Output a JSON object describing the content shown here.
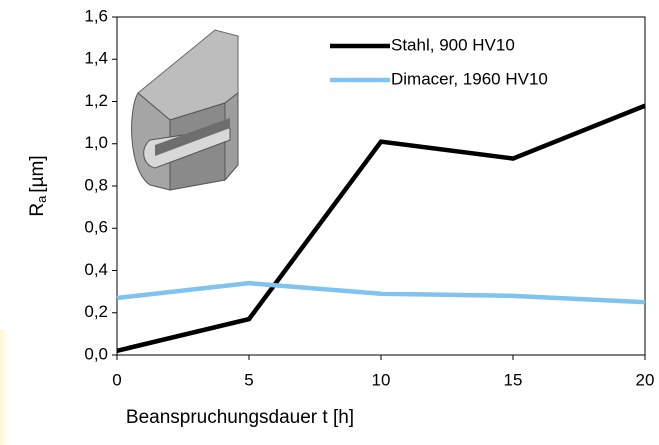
{
  "chart_data": {
    "type": "line",
    "x_label": "Beanspruchungsdauer t [h]",
    "y_label": {
      "symbol": "R",
      "subscript": "a",
      "unit": "[µm]"
    },
    "x": [
      0,
      5,
      10,
      15,
      20
    ],
    "series": [
      {
        "name": "Stahl, 900 HV10",
        "color": "#000000",
        "values": [
          0.02,
          0.17,
          1.01,
          0.93,
          1.18
        ]
      },
      {
        "name": "Dimacer, 1960 HV10",
        "color": "#7fc3ee",
        "values": [
          0.27,
          0.34,
          0.29,
          0.28,
          0.25
        ]
      }
    ],
    "xlim": [
      0,
      20
    ],
    "xticks": [
      0,
      5,
      10,
      15,
      20
    ],
    "ylim": [
      0,
      1.6
    ],
    "yticks": [
      {
        "value": 0,
        "label": "0,0"
      },
      {
        "value": 0.2,
        "label": "0,2"
      },
      {
        "value": 0.4,
        "label": "0,4"
      },
      {
        "value": 0.6,
        "label": "0,6"
      },
      {
        "value": 0.8,
        "label": "0,8"
      },
      {
        "value": 1.0,
        "label": "1,0"
      },
      {
        "value": 1.2,
        "label": "1,2"
      },
      {
        "value": 1.4,
        "label": "1,4"
      },
      {
        "value": 1.6,
        "label": "1,6"
      }
    ],
    "legend": "top-right"
  }
}
